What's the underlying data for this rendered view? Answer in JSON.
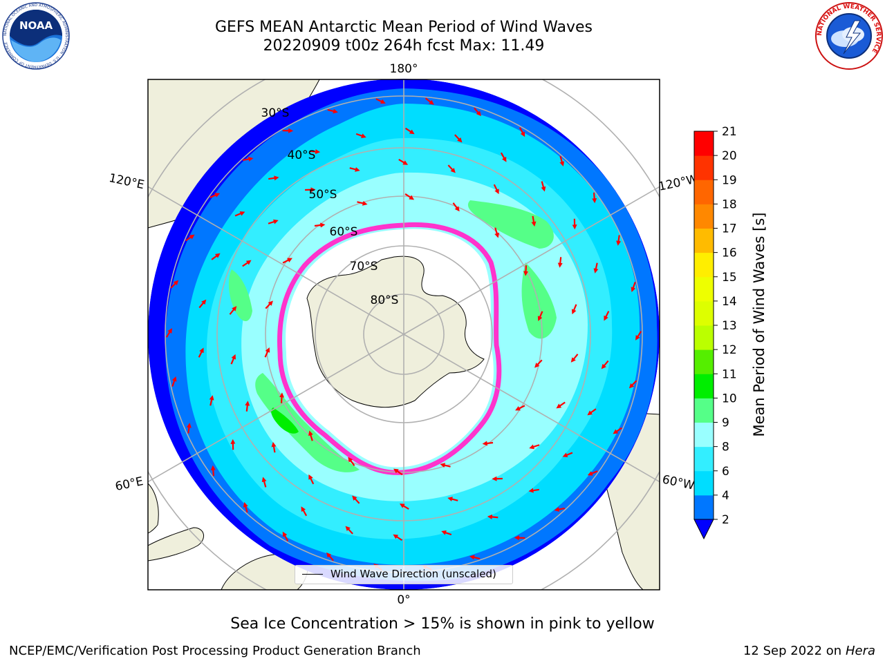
{
  "header": {
    "title_line1": "GEFS MEAN Antarctic Mean Period of Wind Waves",
    "title_line2": "20220909 t00z 264h fcst   Max: 11.49"
  },
  "logos": {
    "noaa": "noaa-logo",
    "nws": "national-weather-service-logo",
    "noaa_text": "NOAA",
    "noaa_ring_text": "NATIONAL OCEANIC AND ATMOSPHERIC ADMINISTRATION · U.S. DEPARTMENT OF COMMERCE",
    "nws_ring_text": "NATIONAL WEATHER SERVICE"
  },
  "map": {
    "projection": "south-polar-stereographic",
    "lon_labels": {
      "top": "180°",
      "bottom": "0°",
      "upper_left": "120°E",
      "lower_left": "60°E",
      "upper_right": "120°W",
      "lower_right": "60°W"
    },
    "lat_labels": [
      "30°S",
      "40°S",
      "50°S",
      "60°S",
      "70°S",
      "80°S"
    ],
    "colors": {
      "land": "#efefdc",
      "ice_free_center": "#ffffff",
      "sea_ice_edge": "#ff33cc",
      "arrow": "#ff0000",
      "gridline": "#b0b0b0"
    }
  },
  "legend": {
    "wave_direction": "Wind Wave Direction (unscaled)"
  },
  "colorbar": {
    "title": "Mean Period of Wind Waves [s]",
    "ticks": [
      "2",
      "4",
      "6",
      "8",
      "9",
      "10",
      "11",
      "12",
      "13",
      "14",
      "15",
      "16",
      "17",
      "18",
      "19",
      "20",
      "21"
    ],
    "bins": [
      {
        "from": 2,
        "to": 4,
        "color": "#0077ff"
      },
      {
        "from": 4,
        "to": 6,
        "color": "#00ddff"
      },
      {
        "from": 6,
        "to": 8,
        "color": "#33eeff"
      },
      {
        "from": 8,
        "to": 9,
        "color": "#99ffff"
      },
      {
        "from": 9,
        "to": 10,
        "color": "#55ff88"
      },
      {
        "from": 10,
        "to": 11,
        "color": "#00ee00"
      },
      {
        "from": 11,
        "to": 12,
        "color": "#55ee00"
      },
      {
        "from": 12,
        "to": 13,
        "color": "#bbff00"
      },
      {
        "from": 13,
        "to": 14,
        "color": "#ddff00"
      },
      {
        "from": 14,
        "to": 15,
        "color": "#eeff00"
      },
      {
        "from": 15,
        "to": 16,
        "color": "#ffee00"
      },
      {
        "from": 16,
        "to": 17,
        "color": "#ffbb00"
      },
      {
        "from": 17,
        "to": 18,
        "color": "#ff8800"
      },
      {
        "from": 18,
        "to": 19,
        "color": "#ff6600"
      },
      {
        "from": 19,
        "to": 20,
        "color": "#ff3300"
      },
      {
        "from": 20,
        "to": 21,
        "color": "#ff0000"
      }
    ],
    "under_color": "#0000ff"
  },
  "footer": {
    "note": "Sea Ice Concentration > 15% is shown in pink to yellow",
    "credit": "NCEP/EMC/Verification Post Processing Product Generation Branch",
    "date": "12 Sep 2022 on",
    "machine": "Hera"
  }
}
